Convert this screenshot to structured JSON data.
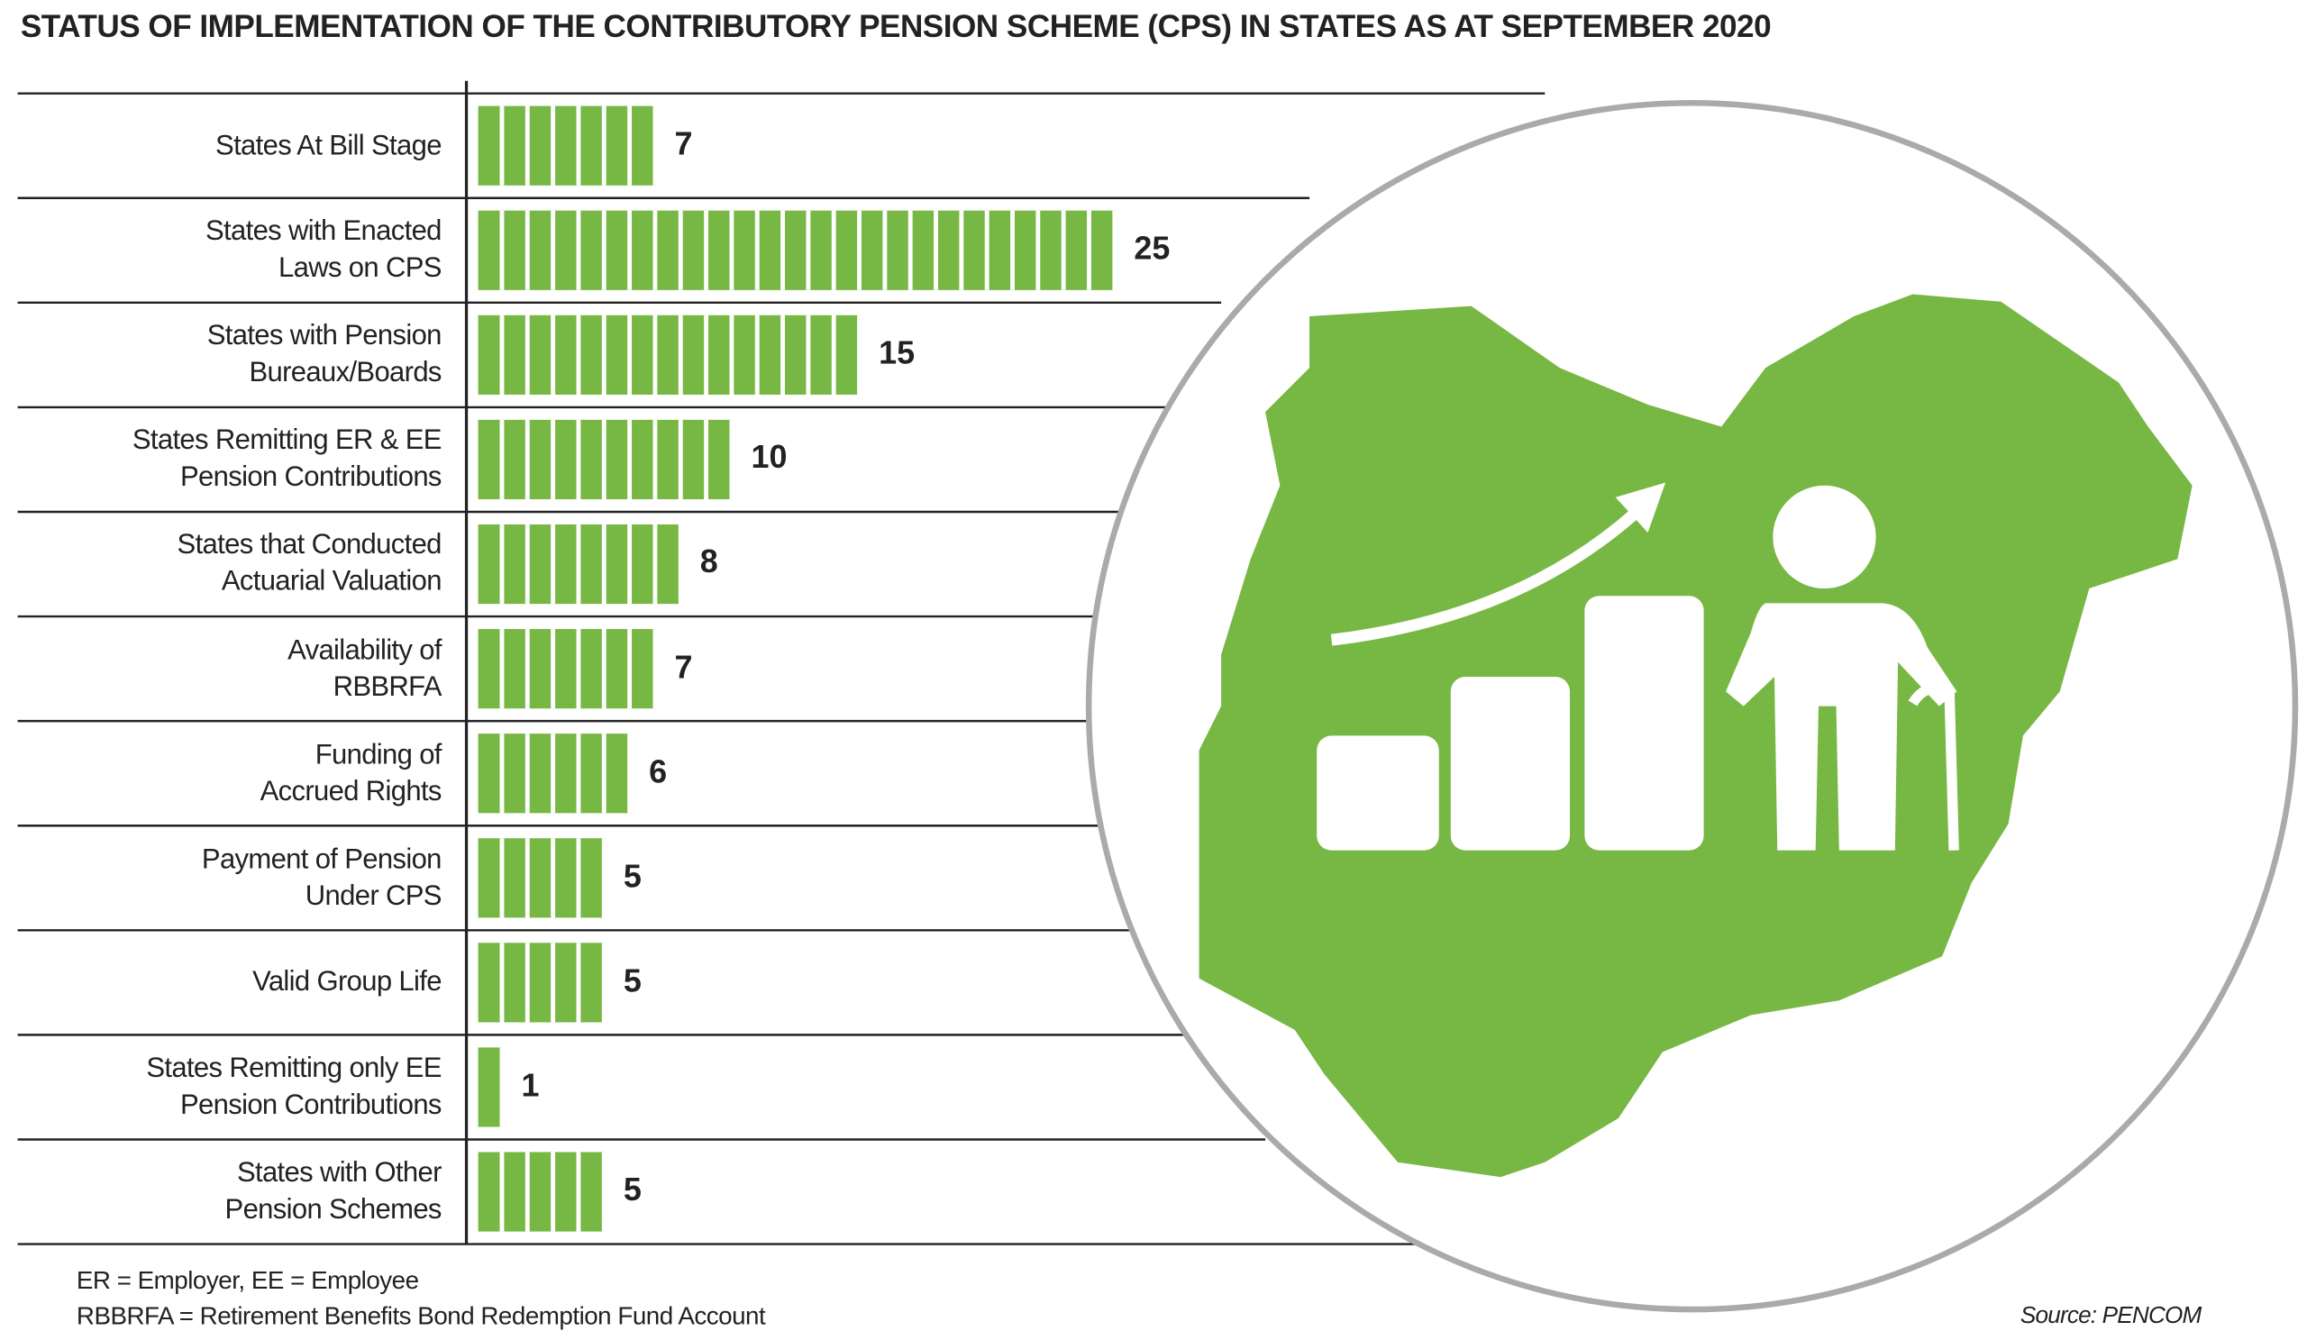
{
  "chart_data": {
    "type": "bar",
    "orientation": "horizontal",
    "title": "STATUS OF IMPLEMENTATION OF THE CONTRIBUTORY PENSION SCHEME (CPS) IN STATES AS AT SEPTEMBER 2020",
    "categories": [
      "States At Bill Stage",
      "States with Enacted\nLaws on CPS",
      "States with Pension\nBureaux/Boards",
      "States Remitting ER & EE\nPension Contributions",
      "States that Conducted\nActuarial Valuation",
      "Availability of\nRBBRFA",
      "Funding of\nAccrued Rights",
      "Payment of Pension\nUnder CPS",
      "Valid Group Life",
      "States Remitting only EE\nPension Contributions",
      "States with Other\nPension Schemes"
    ],
    "values": [
      7,
      25,
      15,
      10,
      8,
      7,
      6,
      5,
      5,
      1,
      5
    ],
    "color": "#77b743",
    "notes": [
      "ER = Employer,  EE = Employee",
      "RBBRFA = Retirement Benefits Bond Redemption Fund Account"
    ],
    "source": "Source: PENCOM"
  }
}
